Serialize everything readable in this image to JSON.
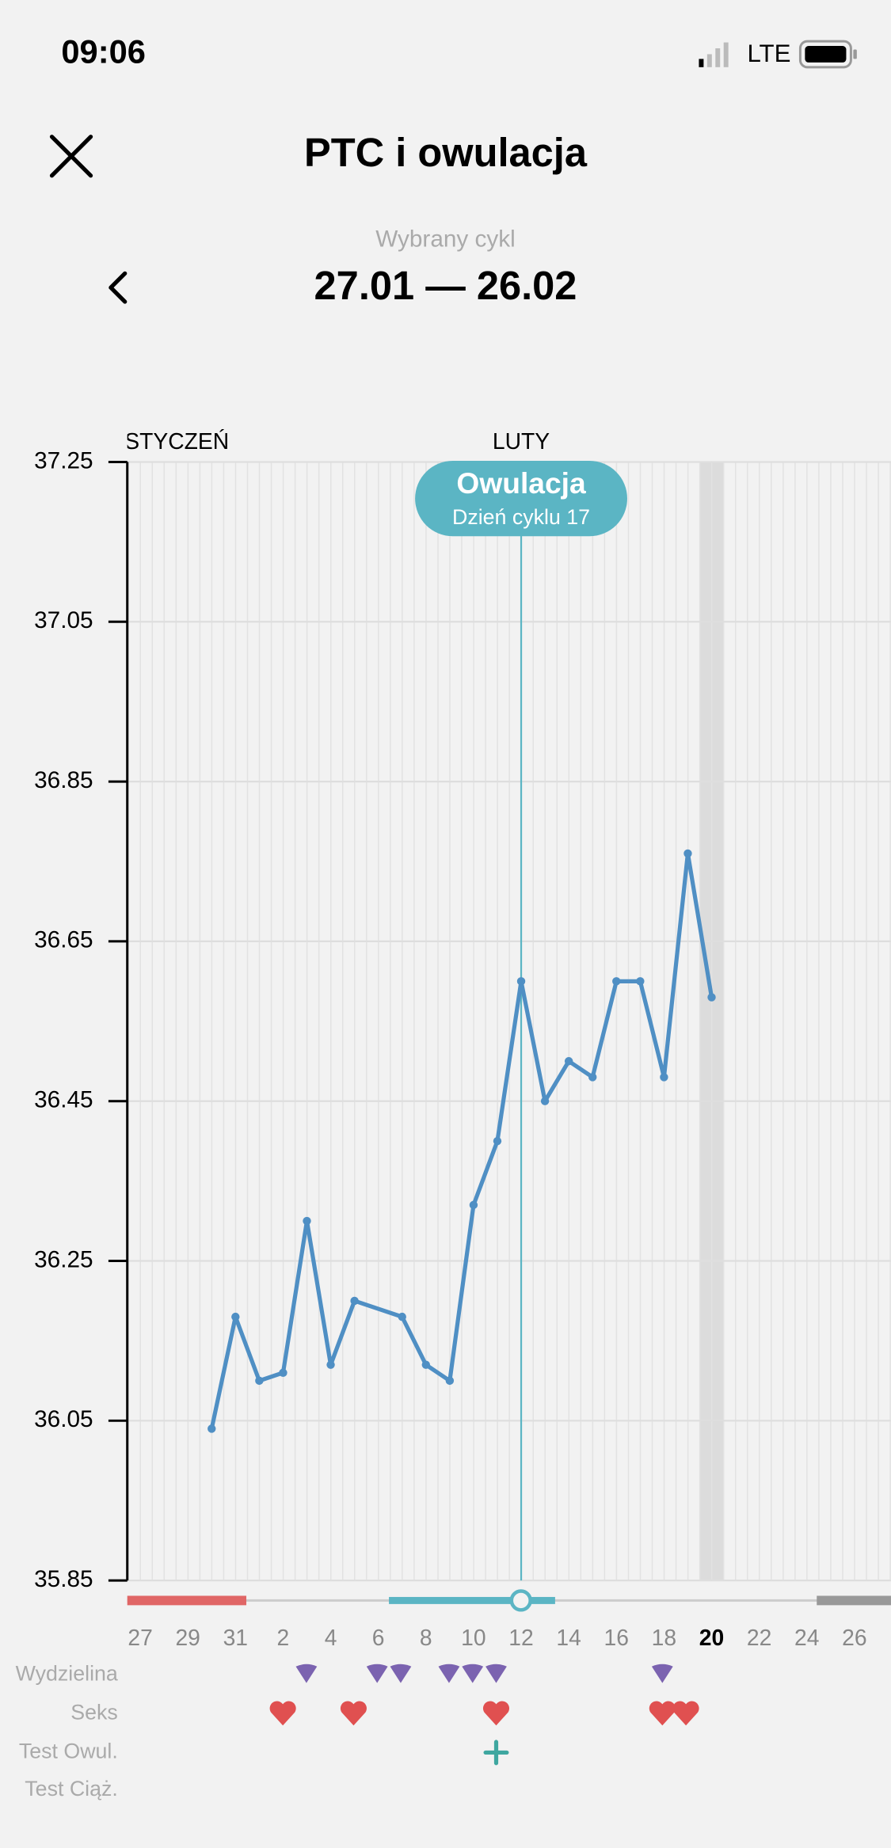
{
  "status_bar": {
    "time": "09:06",
    "network": "LTE"
  },
  "header": {
    "title": "PTC i owulacja",
    "cycle_caption": "Wybrany cykl",
    "cycle_range": "27.01 — 26.02"
  },
  "chart_data": {
    "type": "line",
    "months": [
      {
        "label": "STYCZEŃ",
        "index": -1
      },
      {
        "label": "LUTY",
        "index": 16
      }
    ],
    "categories": [
      "27",
      null,
      "29",
      null,
      "31",
      null,
      "2",
      null,
      "4",
      null,
      "6",
      null,
      "8",
      null,
      "10",
      null,
      "12",
      null,
      "14",
      null,
      "16",
      null,
      "18",
      null,
      "20",
      null,
      "22",
      null,
      "24",
      null,
      "26",
      null
    ],
    "series": [
      {
        "name": "PTC",
        "color": "#4f8fc4",
        "values": [
          null,
          null,
          null,
          36.04,
          36.18,
          36.1,
          36.11,
          36.3,
          36.12,
          36.2,
          null,
          36.18,
          36.12,
          36.1,
          36.32,
          36.4,
          36.6,
          36.45,
          36.5,
          36.48,
          36.6,
          36.6,
          36.48,
          36.76,
          36.58,
          null,
          null,
          null,
          null,
          null,
          null,
          null
        ]
      }
    ],
    "connect_gaps": true,
    "ylim": [
      35.85,
      37.25
    ],
    "yticks": [
      35.85,
      36.05,
      36.25,
      36.45,
      36.65,
      36.85,
      37.05,
      37.25
    ],
    "grid": true,
    "highlight_index": 24,
    "ovulation": {
      "index": 16,
      "title": "Owulacja",
      "subtitle": "Dzień cyklu 17",
      "color": "#5bb5c4"
    },
    "row_labels": [
      "Wydzielina",
      "Seks",
      "Test Owul.",
      "Test Ciąż."
    ]
  }
}
